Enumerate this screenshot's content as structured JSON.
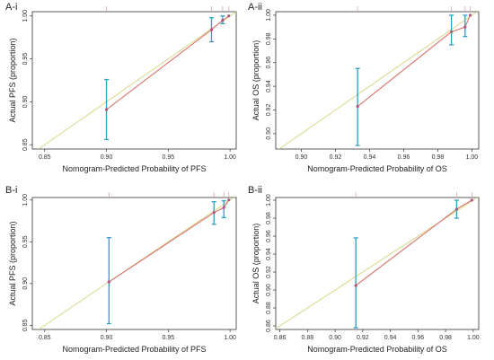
{
  "chart_data": [
    {
      "id": "A-i",
      "panel_label": "A-i",
      "type": "scatter",
      "xlabel": "Nomogram-Predicted Probability of PFS",
      "ylabel": "Actual PFS (proportion)",
      "xlim": [
        0.84,
        1.005
      ],
      "ylim": [
        0.845,
        1.005
      ],
      "xticks": [
        "0.85",
        "0.90",
        "0.95",
        "1.00"
      ],
      "yticks": [
        "0.85",
        "0.90",
        "0.95",
        "1.00"
      ],
      "points": [
        {
          "x": 0.9,
          "y": 0.891,
          "lo": 0.856,
          "hi": 0.926
        },
        {
          "x": 0.985,
          "y": 0.984,
          "lo": 0.97,
          "hi": 0.998
        },
        {
          "x": 0.994,
          "y": 0.995,
          "lo": 0.991,
          "hi": 1.0
        },
        {
          "x": 0.999,
          "y": 1.0,
          "lo": 1.0,
          "hi": 1.0
        }
      ]
    },
    {
      "id": "A-ii",
      "panel_label": "A-ii",
      "type": "scatter",
      "xlabel": "Nomogram-Predicted Probability of OS",
      "ylabel": "Actual OS (proportion)",
      "xlim": [
        0.885,
        1.004
      ],
      "ylim": [
        0.887,
        1.003
      ],
      "xticks": [
        "0.90",
        "0.92",
        "0.94",
        "0.96",
        "0.98",
        "1.00"
      ],
      "yticks": [
        "0.90",
        "0.92",
        "0.94",
        "0.96",
        "0.98",
        "1.00"
      ],
      "points": [
        {
          "x": 0.933,
          "y": 0.923,
          "lo": 0.89,
          "hi": 0.955
        },
        {
          "x": 0.988,
          "y": 0.986,
          "lo": 0.975,
          "hi": 1.0
        },
        {
          "x": 0.996,
          "y": 0.99,
          "lo": 0.982,
          "hi": 1.0
        },
        {
          "x": 0.999,
          "y": 1.0,
          "lo": 1.0,
          "hi": 1.0
        }
      ]
    },
    {
      "id": "B-i",
      "panel_label": "B-i",
      "type": "scatter",
      "xlabel": "Nomogram-Predicted Probability of PFS",
      "ylabel": "Actual PFS (proportion)",
      "xlim": [
        0.84,
        1.005
      ],
      "ylim": [
        0.845,
        1.003
      ],
      "xticks": [
        "0.85",
        "0.90",
        "0.95",
        "1.00"
      ],
      "yticks": [
        "0.85",
        "0.90",
        "0.95",
        "1.00"
      ],
      "points": [
        {
          "x": 0.902,
          "y": 0.902,
          "lo": 0.852,
          "hi": 0.955
        },
        {
          "x": 0.987,
          "y": 0.985,
          "lo": 0.971,
          "hi": 0.998
        },
        {
          "x": 0.995,
          "y": 0.991,
          "lo": 0.979,
          "hi": 0.999
        },
        {
          "x": 0.999,
          "y": 1.0,
          "lo": 1.0,
          "hi": 1.0
        }
      ]
    },
    {
      "id": "B-ii",
      "panel_label": "B-ii",
      "type": "scatter",
      "xlabel": "Nomogram-Predicted Probability of OS",
      "ylabel": "Actual OS (proportion)",
      "xlim": [
        0.857,
        1.004
      ],
      "ylim": [
        0.856,
        1.003
      ],
      "xticks": [
        "0.86",
        "0.88",
        "0.90",
        "0.92",
        "0.94",
        "0.96",
        "0.98",
        "1.00"
      ],
      "yticks": [
        "0.86",
        "0.88",
        "0.90",
        "0.92",
        "0.94",
        "0.96",
        "0.98",
        "1.00"
      ],
      "points": [
        {
          "x": 0.915,
          "y": 0.905,
          "lo": 0.858,
          "hi": 0.958
        },
        {
          "x": 0.988,
          "y": 0.99,
          "lo": 0.98,
          "hi": 1.0
        },
        {
          "x": 0.999,
          "y": 1.0,
          "lo": 1.0,
          "hi": 1.0
        }
      ]
    }
  ],
  "colors": {
    "reference_line": "#d8d889",
    "calibration_line": "#d9756f",
    "error_bar": "#2aa0c2",
    "point": "#b3567a",
    "rug": "#d3a3b2"
  }
}
